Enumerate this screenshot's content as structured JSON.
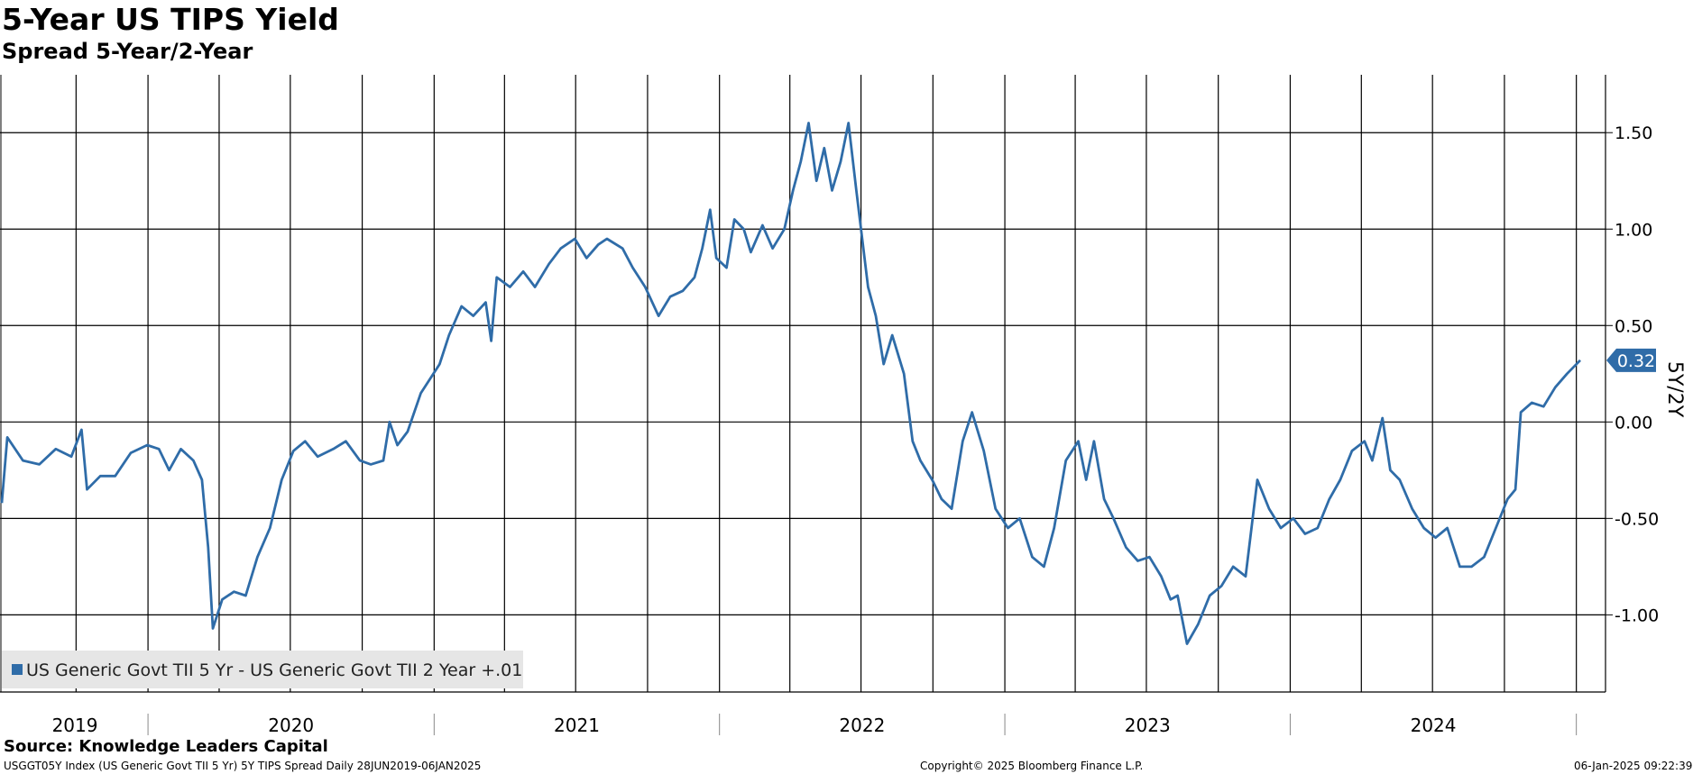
{
  "title": "5-Year US TIPS Yield",
  "subtitle": "Spread 5-Year/2-Year",
  "source": "Source: Knowledge Leaders Capital",
  "footer": {
    "left": "USGGT05Y Index (US Generic Govt TII 5 Yr) 5Y TIPS Spread  Daily 28JUN2019-06JAN2025",
    "center": "Copyright© 2025 Bloomberg Finance L.P.",
    "right": "06-Jan-2025 09:22:39"
  },
  "colors": {
    "line": "#2f6ca8",
    "grid": "#000000",
    "legend_bg": "#e6e6e6"
  },
  "chart_data": {
    "type": "line",
    "ylabel": "5Y/2Y",
    "ylim": [
      -1.4,
      1.8
    ],
    "yticks": [
      1.5,
      1.0,
      0.5,
      0.0,
      -0.5,
      -1.0
    ],
    "ytick_labels": [
      "1.50",
      "1.00",
      "0.50",
      "0.00",
      "-0.50",
      "-1.00"
    ],
    "year_labels": [
      "2019",
      "2020",
      "2021",
      "2022",
      "2023",
      "2024"
    ],
    "grid": true,
    "legend_position": "bottom-left",
    "last_value_label": "0.32",
    "series": [
      {
        "name": "US Generic Govt TII 5 Yr - US Generic Govt TII 2 Year +.01",
        "points": [
          [
            "2019-06-28",
            -0.42
          ],
          [
            "2019-07-05",
            -0.08
          ],
          [
            "2019-07-25",
            -0.2
          ],
          [
            "2019-08-15",
            -0.22
          ],
          [
            "2019-09-05",
            -0.14
          ],
          [
            "2019-09-25",
            -0.18
          ],
          [
            "2019-10-08",
            -0.04
          ],
          [
            "2019-10-15",
            -0.35
          ],
          [
            "2019-11-01",
            -0.28
          ],
          [
            "2019-11-20",
            -0.28
          ],
          [
            "2019-12-10",
            -0.16
          ],
          [
            "2019-12-31",
            -0.12
          ],
          [
            "2020-01-15",
            -0.14
          ],
          [
            "2020-01-28",
            -0.25
          ],
          [
            "2020-02-12",
            -0.14
          ],
          [
            "2020-02-28",
            -0.2
          ],
          [
            "2020-03-10",
            -0.3
          ],
          [
            "2020-03-18",
            -0.65
          ],
          [
            "2020-03-24",
            -1.07
          ],
          [
            "2020-04-05",
            -0.92
          ],
          [
            "2020-04-20",
            -0.88
          ],
          [
            "2020-05-05",
            -0.9
          ],
          [
            "2020-05-20",
            -0.7
          ],
          [
            "2020-06-05",
            -0.55
          ],
          [
            "2020-06-20",
            -0.3
          ],
          [
            "2020-07-05",
            -0.15
          ],
          [
            "2020-07-20",
            -0.1
          ],
          [
            "2020-08-05",
            -0.18
          ],
          [
            "2020-08-25",
            -0.14
          ],
          [
            "2020-09-10",
            -0.1
          ],
          [
            "2020-09-28",
            -0.2
          ],
          [
            "2020-10-12",
            -0.22
          ],
          [
            "2020-10-28",
            -0.2
          ],
          [
            "2020-11-05",
            0.0
          ],
          [
            "2020-11-15",
            -0.12
          ],
          [
            "2020-11-28",
            -0.05
          ],
          [
            "2020-12-15",
            0.15
          ],
          [
            "2021-01-08",
            0.3
          ],
          [
            "2021-01-20",
            0.45
          ],
          [
            "2021-02-05",
            0.6
          ],
          [
            "2021-02-20",
            0.55
          ],
          [
            "2021-03-08",
            0.62
          ],
          [
            "2021-03-15",
            0.42
          ],
          [
            "2021-03-22",
            0.75
          ],
          [
            "2021-04-08",
            0.7
          ],
          [
            "2021-04-25",
            0.78
          ],
          [
            "2021-05-10",
            0.7
          ],
          [
            "2021-05-28",
            0.82
          ],
          [
            "2021-06-12",
            0.9
          ],
          [
            "2021-06-30",
            0.95
          ],
          [
            "2021-07-15",
            0.85
          ],
          [
            "2021-07-30",
            0.92
          ],
          [
            "2021-08-10",
            0.95
          ],
          [
            "2021-08-30",
            0.9
          ],
          [
            "2021-09-12",
            0.8
          ],
          [
            "2021-09-28",
            0.7
          ],
          [
            "2021-10-15",
            0.55
          ],
          [
            "2021-10-30",
            0.65
          ],
          [
            "2021-11-15",
            0.68
          ],
          [
            "2021-11-30",
            0.75
          ],
          [
            "2021-12-10",
            0.9
          ],
          [
            "2021-12-20",
            1.1
          ],
          [
            "2021-12-28",
            0.85
          ],
          [
            "2022-01-10",
            0.8
          ],
          [
            "2022-01-20",
            1.05
          ],
          [
            "2022-02-01",
            1.0
          ],
          [
            "2022-02-10",
            0.88
          ],
          [
            "2022-02-25",
            1.02
          ],
          [
            "2022-03-10",
            0.9
          ],
          [
            "2022-03-25",
            1.0
          ],
          [
            "2022-04-05",
            1.2
          ],
          [
            "2022-04-15",
            1.35
          ],
          [
            "2022-04-25",
            1.55
          ],
          [
            "2022-05-05",
            1.25
          ],
          [
            "2022-05-15",
            1.42
          ],
          [
            "2022-05-25",
            1.2
          ],
          [
            "2022-06-05",
            1.35
          ],
          [
            "2022-06-15",
            1.55
          ],
          [
            "2022-06-25",
            1.2
          ],
          [
            "2022-07-10",
            0.7
          ],
          [
            "2022-07-20",
            0.55
          ],
          [
            "2022-07-30",
            0.3
          ],
          [
            "2022-08-10",
            0.45
          ],
          [
            "2022-08-25",
            0.25
          ],
          [
            "2022-09-05",
            -0.1
          ],
          [
            "2022-09-15",
            -0.2
          ],
          [
            "2022-09-30",
            -0.3
          ],
          [
            "2022-10-12",
            -0.4
          ],
          [
            "2022-10-25",
            -0.45
          ],
          [
            "2022-11-08",
            -0.1
          ],
          [
            "2022-11-20",
            0.05
          ],
          [
            "2022-12-05",
            -0.15
          ],
          [
            "2022-12-20",
            -0.45
          ],
          [
            "2023-01-05",
            -0.55
          ],
          [
            "2023-01-20",
            -0.5
          ],
          [
            "2023-02-05",
            -0.7
          ],
          [
            "2023-02-20",
            -0.75
          ],
          [
            "2023-03-05",
            -0.55
          ],
          [
            "2023-03-20",
            -0.2
          ],
          [
            "2023-04-05",
            -0.1
          ],
          [
            "2023-04-15",
            -0.3
          ],
          [
            "2023-04-25",
            -0.1
          ],
          [
            "2023-05-08",
            -0.4
          ],
          [
            "2023-05-20",
            -0.5
          ],
          [
            "2023-06-05",
            -0.65
          ],
          [
            "2023-06-20",
            -0.72
          ],
          [
            "2023-07-05",
            -0.7
          ],
          [
            "2023-07-20",
            -0.8
          ],
          [
            "2023-08-01",
            -0.92
          ],
          [
            "2023-08-10",
            -0.9
          ],
          [
            "2023-08-22",
            -1.15
          ],
          [
            "2023-09-05",
            -1.05
          ],
          [
            "2023-09-20",
            -0.9
          ],
          [
            "2023-10-05",
            -0.85
          ],
          [
            "2023-10-20",
            -0.75
          ],
          [
            "2023-11-05",
            -0.8
          ],
          [
            "2023-11-20",
            -0.3
          ],
          [
            "2023-12-05",
            -0.45
          ],
          [
            "2023-12-20",
            -0.55
          ],
          [
            "2024-01-05",
            -0.5
          ],
          [
            "2024-01-20",
            -0.58
          ],
          [
            "2024-02-05",
            -0.55
          ],
          [
            "2024-02-20",
            -0.4
          ],
          [
            "2024-03-05",
            -0.3
          ],
          [
            "2024-03-20",
            -0.15
          ],
          [
            "2024-04-05",
            -0.1
          ],
          [
            "2024-04-15",
            -0.2
          ],
          [
            "2024-04-28",
            0.02
          ],
          [
            "2024-05-08",
            -0.25
          ],
          [
            "2024-05-20",
            -0.3
          ],
          [
            "2024-06-05",
            -0.45
          ],
          [
            "2024-06-20",
            -0.55
          ],
          [
            "2024-07-05",
            -0.6
          ],
          [
            "2024-07-20",
            -0.55
          ],
          [
            "2024-08-05",
            -0.75
          ],
          [
            "2024-08-20",
            -0.75
          ],
          [
            "2024-09-05",
            -0.7
          ],
          [
            "2024-09-20",
            -0.55
          ],
          [
            "2024-10-05",
            -0.4
          ],
          [
            "2024-10-15",
            -0.35
          ],
          [
            "2024-10-22",
            0.05
          ],
          [
            "2024-11-05",
            0.1
          ],
          [
            "2024-11-20",
            0.08
          ],
          [
            "2024-12-05",
            0.18
          ],
          [
            "2024-12-20",
            0.25
          ],
          [
            "2025-01-06",
            0.32
          ]
        ]
      }
    ]
  }
}
